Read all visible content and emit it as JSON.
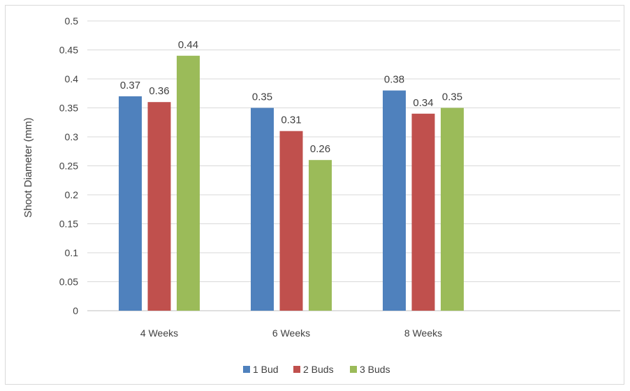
{
  "chart_data": {
    "type": "bar",
    "title": "",
    "xlabel": "",
    "ylabel": "Shoot Diameter (mm)",
    "ylim": [
      0,
      0.5
    ],
    "y_ticks": [
      "0",
      "0.05",
      "0.1",
      "0.15",
      "0.2",
      "0.25",
      "0.3",
      "0.35",
      "0.4",
      "0.45",
      "0.5"
    ],
    "grid": true,
    "legend_position": "bottom",
    "categories": [
      "4 Weeks",
      "6 Weeks",
      "8 Weeks"
    ],
    "series": [
      {
        "name": "1 Bud",
        "color": "#4f81bd",
        "values": [
          0.37,
          0.35,
          0.38
        ],
        "labels": [
          "0.37",
          "0.35",
          "0.38"
        ]
      },
      {
        "name": "2 Buds",
        "color": "#c0504d",
        "values": [
          0.36,
          0.31,
          0.34
        ],
        "labels": [
          "0.36",
          "0.31",
          "0.34"
        ]
      },
      {
        "name": "3 Buds",
        "color": "#9bbb59",
        "values": [
          0.44,
          0.26,
          0.35
        ],
        "labels": [
          "0.44",
          "0.26",
          "0.35"
        ]
      }
    ]
  }
}
